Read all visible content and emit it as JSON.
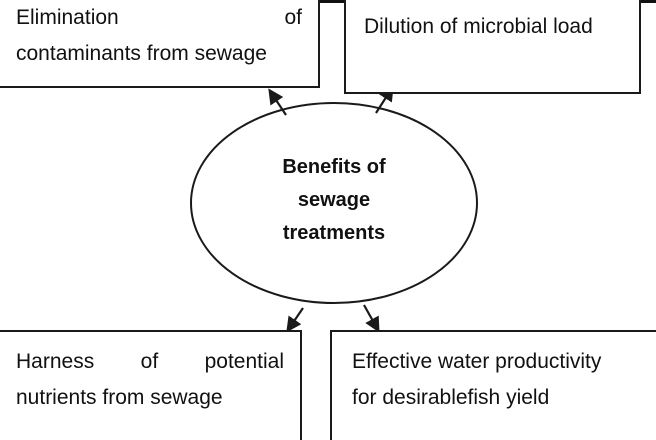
{
  "center": {
    "label_lines": [
      "Benefits of",
      "sewage",
      "treatments"
    ]
  },
  "boxes": {
    "top_left": {
      "line1_words": [
        "Elimination",
        "of"
      ],
      "line2": "contaminants from sewage"
    },
    "top_right": {
      "text": "Dilution of microbial load"
    },
    "bottom_left": {
      "line1_words": [
        "Harness",
        "of",
        "potential"
      ],
      "line2": "nutrients from sewage"
    },
    "bottom_right": {
      "line1": "Effective water productivity",
      "line2": "for desirablefish yield"
    }
  },
  "colors": {
    "stroke": "#1a1a1a",
    "background": "#ffffff"
  }
}
